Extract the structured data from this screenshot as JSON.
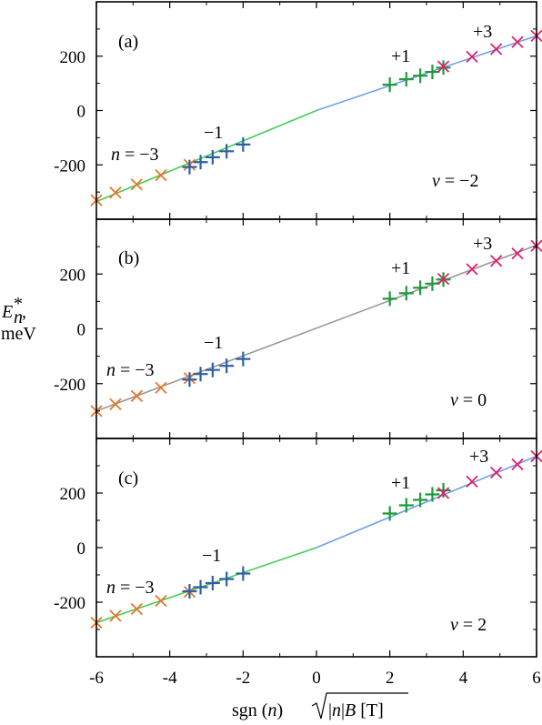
{
  "figure": {
    "y_label_sym": "E",
    "y_label_sub": "n",
    "y_label_sup": "*",
    "y_label_unit": "meV",
    "x_label_pre": "sgn (",
    "x_label_n": "n",
    "x_label_mid": ")",
    "x_label_rad_a": "|",
    "x_label_rad_n": "n",
    "x_label_rad_b": "|",
    "x_label_rad_B": "B",
    "x_label_rad_unit": " [T]"
  },
  "colors": {
    "orange": "#e8742a",
    "blue": "#2f5fa8",
    "green": "#1e9a3a",
    "magenta": "#e0206e",
    "line_green": "#44cc55",
    "line_blue": "#6f9fe8",
    "line_gray": "#999999"
  },
  "chart_data": [
    {
      "type": "scatter",
      "panel_label": "(a)",
      "nu_label": "ν = −2",
      "xlim": [
        -6,
        6
      ],
      "ylim": [
        -400,
        400
      ],
      "x_ticks": [
        -6,
        -4,
        -2,
        0,
        2,
        4,
        6
      ],
      "y_ticks": [
        -200,
        0,
        200
      ],
      "x_tick_labels": [
        "-6",
        "-4",
        "-2",
        "0",
        "2",
        "4",
        "6"
      ],
      "y_tick_labels": [
        "-200",
        "0",
        "200"
      ],
      "annotations": {
        "n_minus3": "n = −3",
        "minus1": "−1",
        "plus1": "+1",
        "plus3": "+3"
      },
      "fit_lines": [
        {
          "color_key": "line_green",
          "x": [
            -6,
            0
          ],
          "y": [
            -335,
            0
          ]
        },
        {
          "color_key": "line_blue",
          "x": [
            0,
            6
          ],
          "y": [
            0,
            275
          ]
        }
      ],
      "series": [
        {
          "marker": "x",
          "color_key": "orange",
          "x": [
            -6.0,
            -5.48,
            -4.9,
            -4.24,
            -3.46
          ],
          "y": [
            -330,
            -302,
            -272,
            -238,
            -200
          ]
        },
        {
          "marker": "+",
          "color_key": "blue",
          "x": [
            -3.46,
            -3.16,
            -2.83,
            -2.45,
            -2.0
          ],
          "y": [
            -208,
            -190,
            -172,
            -150,
            -125
          ]
        },
        {
          "marker": "+",
          "color_key": "green",
          "x": [
            2.0,
            2.45,
            2.83,
            3.16,
            3.46
          ],
          "y": [
            95,
            115,
            128,
            142,
            158
          ]
        },
        {
          "marker": "x",
          "color_key": "magenta",
          "x": [
            3.46,
            4.24,
            4.9,
            5.48,
            6.0
          ],
          "y": [
            162,
            198,
            226,
            252,
            275
          ]
        }
      ]
    },
    {
      "type": "scatter",
      "panel_label": "(b)",
      "nu_label": "ν = 0",
      "xlim": [
        -6,
        6
      ],
      "ylim": [
        -400,
        400
      ],
      "x_ticks": [
        -6,
        -4,
        -2,
        0,
        2,
        4,
        6
      ],
      "y_ticks": [
        -200,
        0,
        200
      ],
      "x_tick_labels": [
        "-6",
        "-4",
        "-2",
        "0",
        "2",
        "4",
        "6"
      ],
      "y_tick_labels": [
        "-200",
        "0",
        "200"
      ],
      "annotations": {
        "n_minus3": "n = −3",
        "minus1": "−1",
        "plus1": "+1",
        "plus3": "+3"
      },
      "fit_lines": [
        {
          "color_key": "line_gray",
          "x": [
            -6,
            6
          ],
          "y": [
            -300,
            305
          ]
        }
      ],
      "series": [
        {
          "marker": "x",
          "color_key": "orange",
          "x": [
            -6.0,
            -5.48,
            -4.9,
            -4.24,
            -3.46
          ],
          "y": [
            -300,
            -275,
            -245,
            -215,
            -180
          ]
        },
        {
          "marker": "+",
          "color_key": "blue",
          "x": [
            -3.46,
            -3.16,
            -2.83,
            -2.45,
            -2.0
          ],
          "y": [
            -185,
            -165,
            -150,
            -135,
            -110
          ]
        },
        {
          "marker": "+",
          "color_key": "green",
          "x": [
            2.0,
            2.45,
            2.83,
            3.16,
            3.46
          ],
          "y": [
            110,
            130,
            150,
            165,
            180
          ]
        },
        {
          "marker": "x",
          "color_key": "magenta",
          "x": [
            3.46,
            4.24,
            4.9,
            5.48,
            6.0
          ],
          "y": [
            182,
            218,
            248,
            275,
            303
          ]
        }
      ]
    },
    {
      "type": "scatter",
      "panel_label": "(c)",
      "nu_label": "ν = 2",
      "xlim": [
        -6,
        6
      ],
      "ylim": [
        -400,
        400
      ],
      "x_ticks": [
        -6,
        -4,
        -2,
        0,
        2,
        4,
        6
      ],
      "y_ticks": [
        -200,
        0,
        200
      ],
      "x_tick_labels": [
        "-6",
        "-4",
        "-2",
        "0",
        "2",
        "4",
        "6"
      ],
      "y_tick_labels": [
        "-200",
        "0",
        "200"
      ],
      "annotations": {
        "n_minus3": "n = −3",
        "minus1": "−1",
        "plus1": "+1",
        "plus3": "+3"
      },
      "fit_lines": [
        {
          "color_key": "line_green",
          "x": [
            -6,
            0
          ],
          "y": [
            -275,
            0
          ]
        },
        {
          "color_key": "line_blue",
          "x": [
            0,
            6
          ],
          "y": [
            0,
            335
          ]
        }
      ],
      "series": [
        {
          "marker": "x",
          "color_key": "orange",
          "x": [
            -6.0,
            -5.48,
            -4.9,
            -4.24,
            -3.46
          ],
          "y": [
            -275,
            -250,
            -225,
            -195,
            -162
          ]
        },
        {
          "marker": "+",
          "color_key": "blue",
          "x": [
            -3.46,
            -3.16,
            -2.83,
            -2.45,
            -2.0
          ],
          "y": [
            -160,
            -145,
            -130,
            -115,
            -95
          ]
        },
        {
          "marker": "+",
          "color_key": "green",
          "x": [
            2.0,
            2.45,
            2.83,
            3.16,
            3.46
          ],
          "y": [
            125,
            155,
            175,
            195,
            210
          ]
        },
        {
          "marker": "x",
          "color_key": "magenta",
          "x": [
            3.46,
            4.24,
            4.9,
            5.48,
            6.0
          ],
          "y": [
            200,
            242,
            275,
            305,
            335
          ]
        }
      ]
    }
  ]
}
